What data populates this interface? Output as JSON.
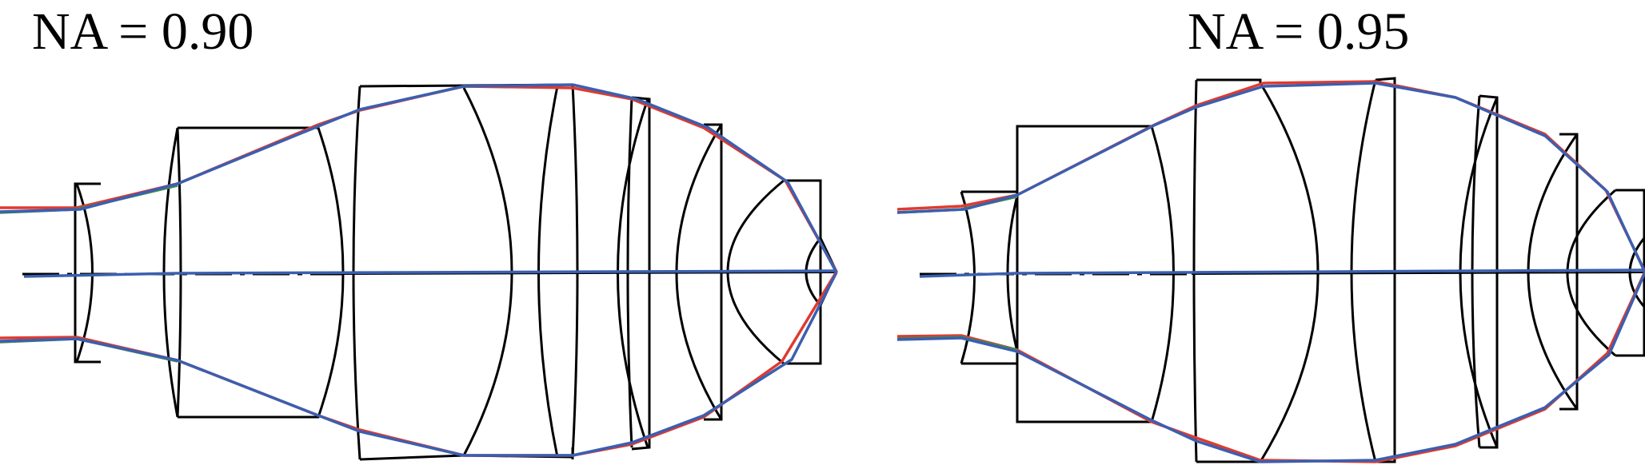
{
  "panels": [
    {
      "title": "NA = 0.90"
    },
    {
      "title": "NA = 0.95"
    }
  ],
  "colors": {
    "lens_outline": "#000000",
    "ray_red": "#e03a2f",
    "ray_green": "#3f8a4a",
    "ray_blue": "#3b5fb0",
    "background": "#ffffff"
  }
}
